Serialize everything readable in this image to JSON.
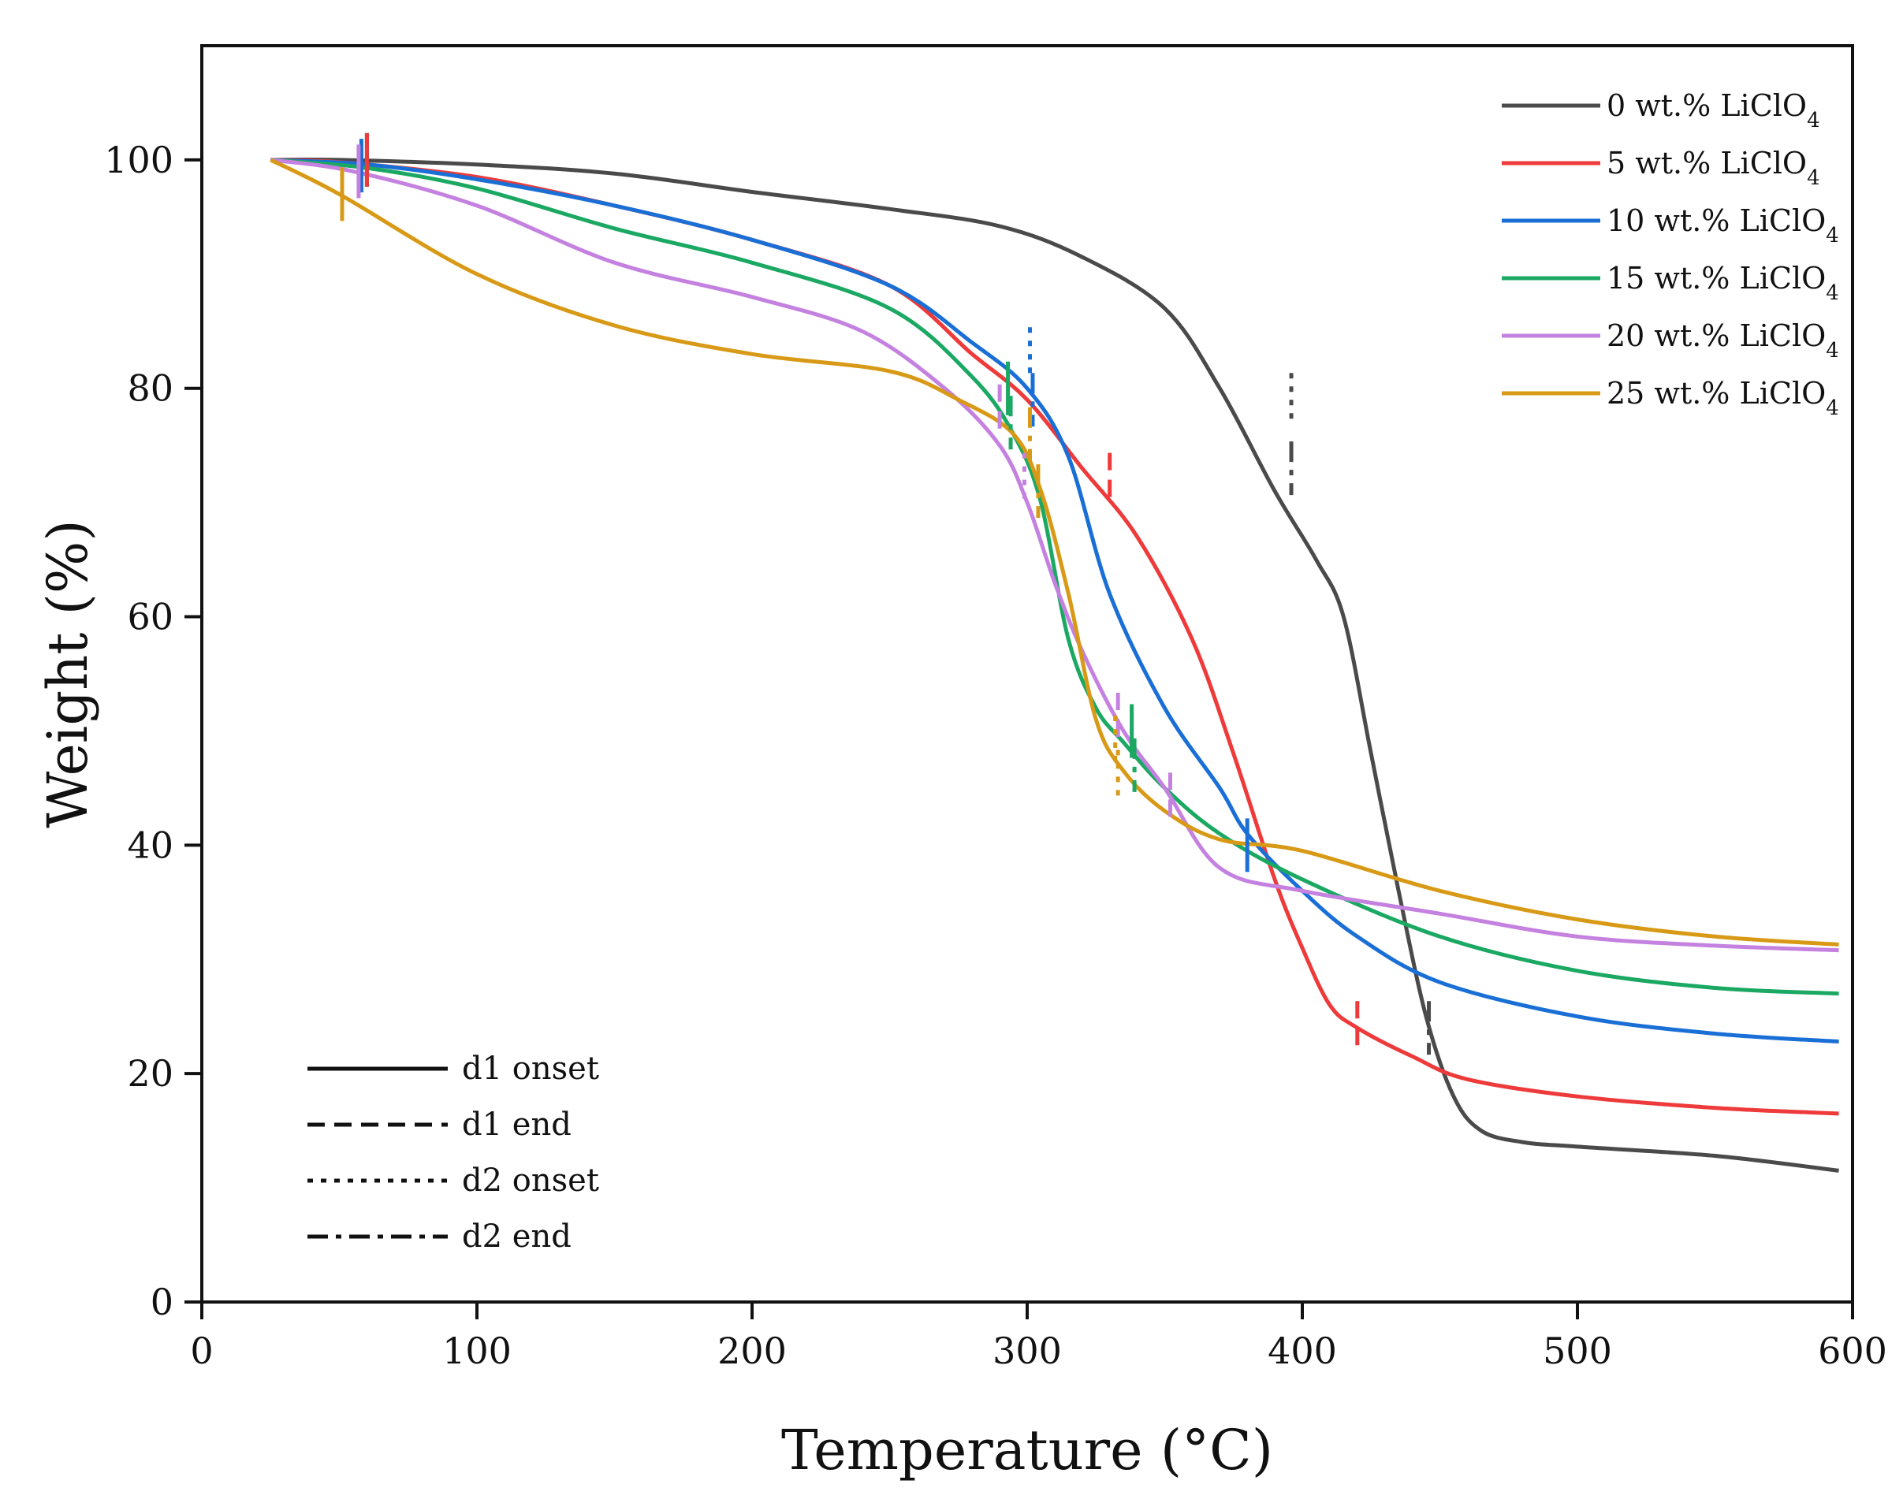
{
  "chart_data": {
    "type": "line",
    "xlabel": "Temperature (°C)",
    "ylabel": "Weight (%)",
    "xlim": [
      0,
      600
    ],
    "ylim": [
      0,
      110
    ],
    "x_ticks": [
      0,
      100,
      200,
      300,
      400,
      500,
      600
    ],
    "y_ticks": [
      0,
      20,
      40,
      60,
      80,
      100
    ],
    "grid": false,
    "legend_position": "top-right",
    "series": [
      {
        "name": "0 wt.% LiClO4",
        "label_main": "0 wt.% LiClO",
        "label_sub": "4",
        "color": "#4a4a4a",
        "x": [
          25,
          50,
          100,
          150,
          200,
          250,
          290,
          320,
          350,
          370,
          390,
          405,
          415,
          425,
          435,
          445,
          455,
          465,
          480,
          500,
          550,
          595
        ],
        "y": [
          100,
          100,
          99.6,
          98.8,
          97.2,
          95.7,
          94.2,
          91.5,
          87,
          80,
          71,
          65,
          60,
          48,
          36,
          25,
          18,
          15,
          14,
          13.6,
          12.8,
          11.5
        ]
      },
      {
        "name": "5 wt.% LiClO4",
        "label_main": "5 wt.% LiClO",
        "label_sub": "4",
        "color": "#ee3a3a",
        "x": [
          25,
          50,
          100,
          150,
          200,
          250,
          280,
          300,
          320,
          340,
          360,
          375,
          390,
          400,
          410,
          420,
          440,
          460,
          500,
          550,
          595
        ],
        "y": [
          100,
          99.8,
          98.5,
          96,
          93,
          89,
          83,
          79,
          73,
          67,
          58,
          48,
          37,
          31,
          26,
          24,
          21.5,
          19.5,
          18,
          17,
          16.5
        ]
      },
      {
        "name": "10 wt.% LiClO4",
        "label_main": "10 wt.% LiClO",
        "label_sub": "4",
        "color": "#1a6fd6",
        "x": [
          25,
          60,
          100,
          150,
          200,
          250,
          280,
          300,
          315,
          330,
          350,
          370,
          380,
          400,
          420,
          450,
          500,
          550,
          595
        ],
        "y": [
          100,
          99.6,
          98.3,
          96,
          93,
          89,
          84,
          80,
          74,
          62,
          52,
          45,
          41,
          36,
          32,
          28,
          25,
          23.5,
          22.8
        ]
      },
      {
        "name": "15 wt.% LiClO4",
        "label_main": "15 wt.% LiClO",
        "label_sub": "4",
        "color": "#1aa862",
        "x": [
          25,
          60,
          100,
          150,
          200,
          250,
          280,
          295,
          305,
          315,
          325,
          335,
          350,
          370,
          400,
          450,
          500,
          550,
          595
        ],
        "y": [
          100,
          99.3,
          97.5,
          94,
          91,
          87,
          81,
          76,
          70,
          58,
          52,
          49,
          45,
          41,
          37,
          32,
          29,
          27.5,
          27
        ]
      },
      {
        "name": "20 wt.% LiClO4",
        "label_main": "20 wt.% LiClO",
        "label_sub": "4",
        "color": "#c481e0",
        "x": [
          25,
          55,
          100,
          150,
          200,
          240,
          270,
          290,
          300,
          310,
          320,
          335,
          350,
          370,
          400,
          450,
          500,
          550,
          595
        ],
        "y": [
          100,
          99,
          96,
          91,
          88,
          85,
          80,
          75,
          70,
          63,
          57,
          50,
          45,
          38,
          36,
          34,
          32,
          31.2,
          30.8
        ]
      },
      {
        "name": "25 wt.% LiClO4",
        "label_main": "25 wt.% LiClO",
        "label_sub": "4",
        "color": "#d89a16",
        "x": [
          25,
          50,
          100,
          150,
          200,
          250,
          275,
          295,
          305,
          315,
          325,
          335,
          350,
          370,
          400,
          450,
          500,
          550,
          595
        ],
        "y": [
          100,
          97,
          90,
          85.5,
          83,
          81.5,
          79,
          76,
          71,
          62,
          51,
          46.5,
          43,
          40.5,
          39.5,
          36,
          33.5,
          32,
          31.3
        ]
      }
    ],
    "line_style_legend": [
      {
        "label": "d1 onset",
        "style": "solid"
      },
      {
        "label": "d1 end",
        "style": "dashed"
      },
      {
        "label": "d2 onset",
        "style": "dotted"
      },
      {
        "label": "d2 end",
        "style": "dashdot"
      }
    ],
    "markers": [
      {
        "series": 0,
        "x": 60,
        "y": 100,
        "style": "solid"
      },
      {
        "series": 0,
        "x": 396,
        "y": 79,
        "style": "dotted"
      },
      {
        "series": 0,
        "x": 396,
        "y": 73,
        "style": "dashdot"
      },
      {
        "series": 0,
        "x": 446,
        "y": 24,
        "style": "dashdot"
      },
      {
        "series": 1,
        "x": 60,
        "y": 100,
        "style": "solid"
      },
      {
        "series": 1,
        "x": 330,
        "y": 72,
        "style": "dashed"
      },
      {
        "series": 1,
        "x": 420,
        "y": 24,
        "style": "dashed"
      },
      {
        "series": 2,
        "x": 58,
        "y": 99.5,
        "style": "solid"
      },
      {
        "series": 2,
        "x": 301,
        "y": 83,
        "style": "dotted"
      },
      {
        "series": 2,
        "x": 302,
        "y": 79,
        "style": "dashdot"
      },
      {
        "series": 2,
        "x": 380,
        "y": 40,
        "style": "solid"
      },
      {
        "series": 3,
        "x": 293,
        "y": 80,
        "style": "solid"
      },
      {
        "series": 3,
        "x": 294,
        "y": 77,
        "style": "dashdot"
      },
      {
        "series": 3,
        "x": 338,
        "y": 50,
        "style": "solid"
      },
      {
        "series": 3,
        "x": 339,
        "y": 47,
        "style": "dashdot"
      },
      {
        "series": 4,
        "x": 57,
        "y": 99,
        "style": "solid"
      },
      {
        "series": 4,
        "x": 290,
        "y": 78,
        "style": "dashed"
      },
      {
        "series": 4,
        "x": 299,
        "y": 72,
        "style": "dotted"
      },
      {
        "series": 4,
        "x": 352,
        "y": 44,
        "style": "dashed"
      },
      {
        "series": 4,
        "x": 333,
        "y": 51,
        "style": "dashed"
      },
      {
        "series": 5,
        "x": 51,
        "y": 97,
        "style": "solid"
      },
      {
        "series": 5,
        "x": 301,
        "y": 76,
        "style": "dashdot"
      },
      {
        "series": 5,
        "x": 304,
        "y": 71,
        "style": "dashdot"
      },
      {
        "series": 5,
        "x": 332,
        "y": 49,
        "style": "dotted"
      },
      {
        "series": 5,
        "x": 333,
        "y": 46,
        "style": "dotted"
      }
    ]
  }
}
